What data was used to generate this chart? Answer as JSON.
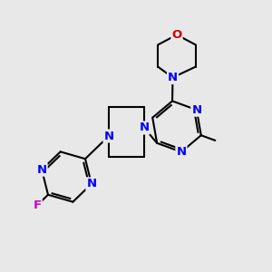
{
  "bg_color": "#e8e8e8",
  "bond_color": "#000000",
  "N_color": "#0000ff",
  "O_color": "#cc0000",
  "F_color": "#cc00cc",
  "line_width": 1.5,
  "font_size": 9.5,
  "xlim": [
    0,
    10
  ],
  "ylim": [
    0,
    10
  ]
}
